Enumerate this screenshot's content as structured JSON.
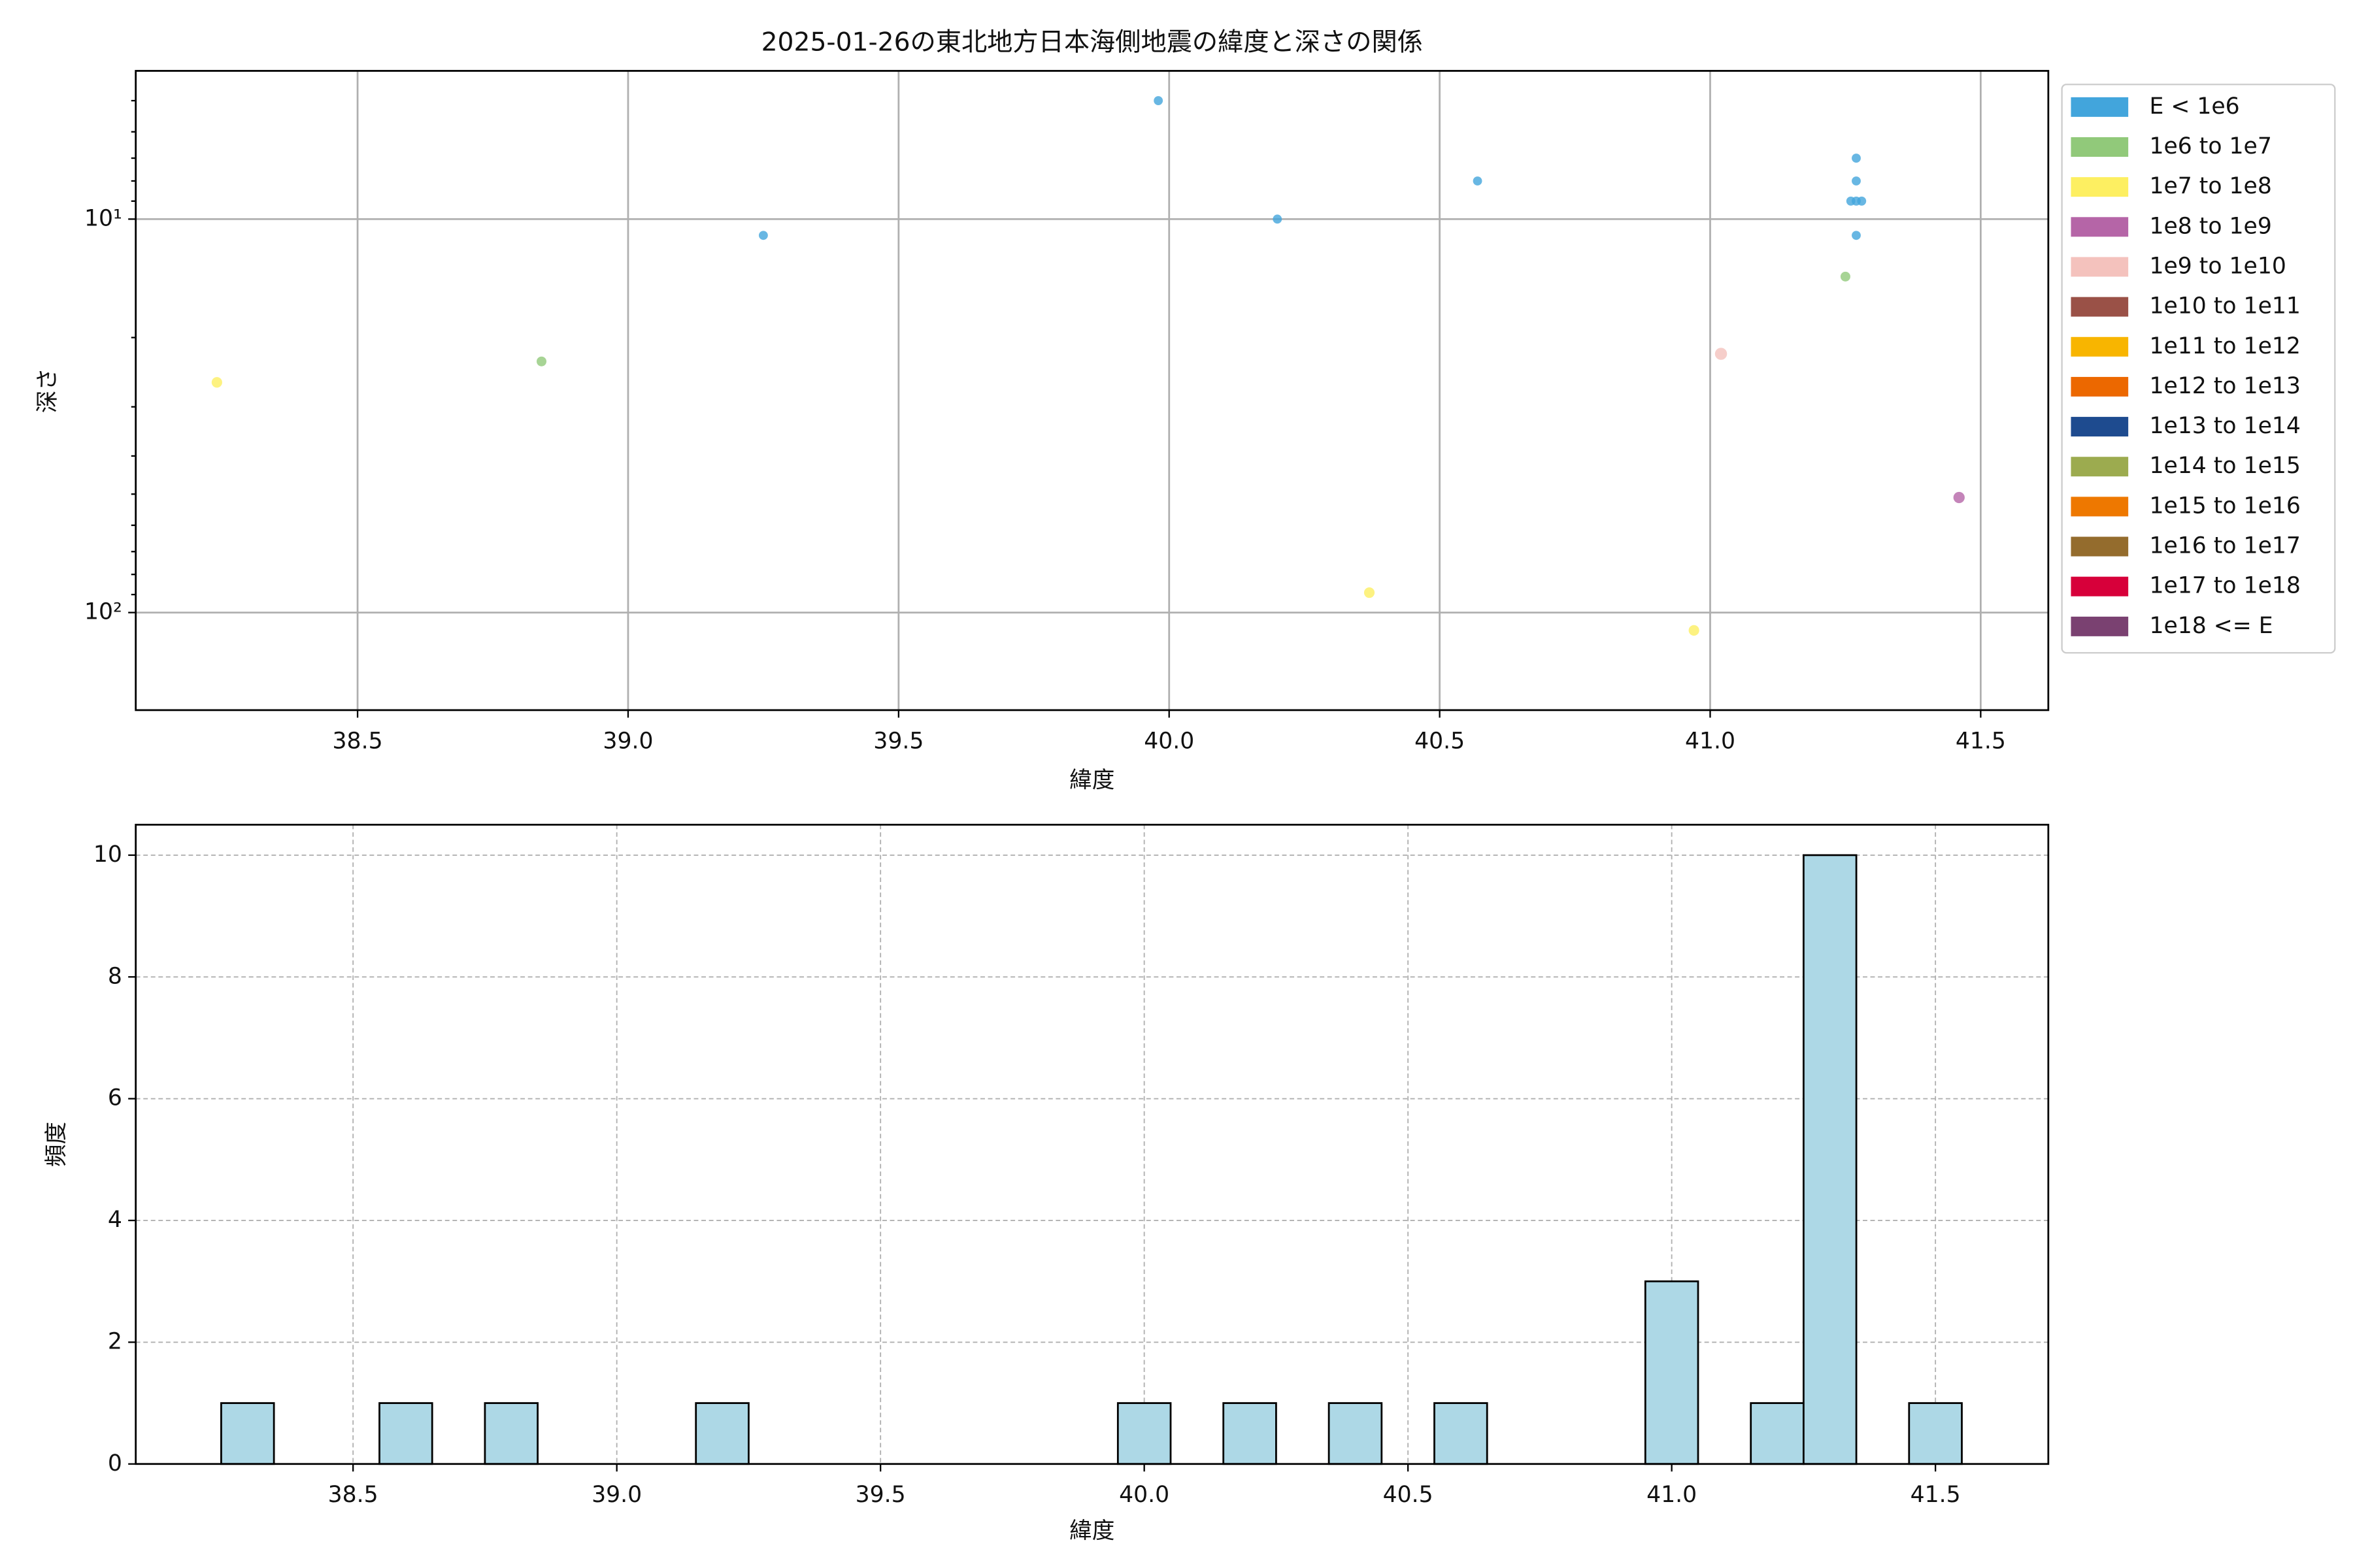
{
  "chart_data": [
    {
      "type": "scatter",
      "title": "2025-01-26の東北地方日本海側地震の緯度と深さの関係",
      "x_label": "緯度",
      "y_label": "深さ",
      "y_log": true,
      "grid": true,
      "legend": "outside right",
      "xlim": [
        38.09,
        41.625
      ],
      "xticks": [
        38.5,
        {
          "value": 39,
          "label": "39.0"
        },
        39.5,
        {
          "value": 40,
          "label": "40.0"
        },
        40.5,
        {
          "value": 41,
          "label": "41.0"
        },
        41.5
      ],
      "ylim": [
        177,
        4.2
      ],
      "yticks": [
        {
          "value": 10,
          "label": "10¹"
        },
        {
          "value": 100,
          "label": "10²"
        }
      ],
      "yminorticks": [
        5,
        6,
        7,
        8,
        9,
        20,
        30,
        40,
        50,
        60,
        70,
        80,
        90
      ],
      "series": [
        {
          "name": "E < 1e6",
          "color": "#42a5dc",
          "x": [
            39.25,
            39.98,
            40.2,
            40.57,
            41.27,
            41.27,
            41.26,
            41.28,
            41.27,
            41.27
          ],
          "values": [
            11,
            5,
            10,
            8,
            7,
            8,
            9,
            9,
            9,
            11
          ]
        },
        {
          "name": "1e6 to 1e7",
          "color": "#91c97a",
          "x": [
            38.84,
            41.25
          ],
          "values": [
            23,
            14
          ]
        },
        {
          "name": "1e7 to 1e8",
          "color": "#fdef61",
          "x": [
            38.24,
            40.37,
            40.97
          ],
          "values": [
            26,
            89,
            111
          ]
        },
        {
          "name": "1e8 to 1e9",
          "color": "#b565a7",
          "x": [
            41.46
          ],
          "values": [
            51
          ]
        },
        {
          "name": "1e9 to 1e10",
          "color": "#f4c2bd",
          "x": [
            41.02
          ],
          "values": [
            22
          ]
        },
        {
          "name": "1e10 to 1e11",
          "color": "#9a5147",
          "x": [],
          "values": []
        },
        {
          "name": "1e11 to 1e12",
          "color": "#f8b500",
          "x": [],
          "values": []
        },
        {
          "name": "1e12 to 1e13",
          "color": "#ec6800",
          "x": [],
          "values": []
        },
        {
          "name": "1e13 to 1e14",
          "color": "#1e4b8f",
          "x": [],
          "values": []
        },
        {
          "name": "1e14 to 1e15",
          "color": "#9cab4f",
          "x": [],
          "values": []
        },
        {
          "name": "1e15 to 1e16",
          "color": "#ee7800",
          "x": [],
          "values": []
        },
        {
          "name": "1e16 to 1e17",
          "color": "#946c2d",
          "x": [],
          "values": []
        },
        {
          "name": "1e17 to 1e18",
          "color": "#d7003a",
          "x": [],
          "values": []
        },
        {
          "name": "1e18 <= E",
          "color": "#7a4171",
          "x": [],
          "values": []
        }
      ]
    },
    {
      "type": "histogram",
      "x_label": "緯度",
      "y_label": "頻度",
      "grid": true,
      "color": "#add8e6",
      "xlim": [
        38.088,
        41.714
      ],
      "xticks": [
        38.5,
        {
          "value": 39,
          "label": "39.0"
        },
        39.5,
        {
          "value": 40,
          "label": "40.0"
        },
        40.5,
        {
          "value": 41,
          "label": "41.0"
        },
        41.5
      ],
      "ylim": [
        0,
        10.5
      ],
      "yticks": [
        0,
        2,
        4,
        6,
        8,
        10
      ],
      "bins": [
        38.25,
        38.35,
        38.45,
        38.55,
        38.65,
        38.75,
        38.85,
        38.95,
        39.05,
        39.15,
        39.25,
        39.35,
        39.45,
        39.55,
        39.65,
        39.75,
        39.85,
        39.95,
        40.05,
        40.15,
        40.25,
        40.35,
        40.45,
        40.55,
        40.65,
        40.75,
        40.85,
        40.95,
        41.05,
        41.15,
        41.25,
        41.35,
        41.45,
        41.55
      ],
      "counts": [
        1,
        0,
        0,
        1,
        0,
        1,
        0,
        0,
        0,
        1,
        0,
        0,
        0,
        0,
        0,
        0,
        0,
        1,
        0,
        1,
        0,
        1,
        0,
        1,
        0,
        0,
        0,
        3,
        0,
        1,
        10,
        0,
        1
      ]
    }
  ]
}
